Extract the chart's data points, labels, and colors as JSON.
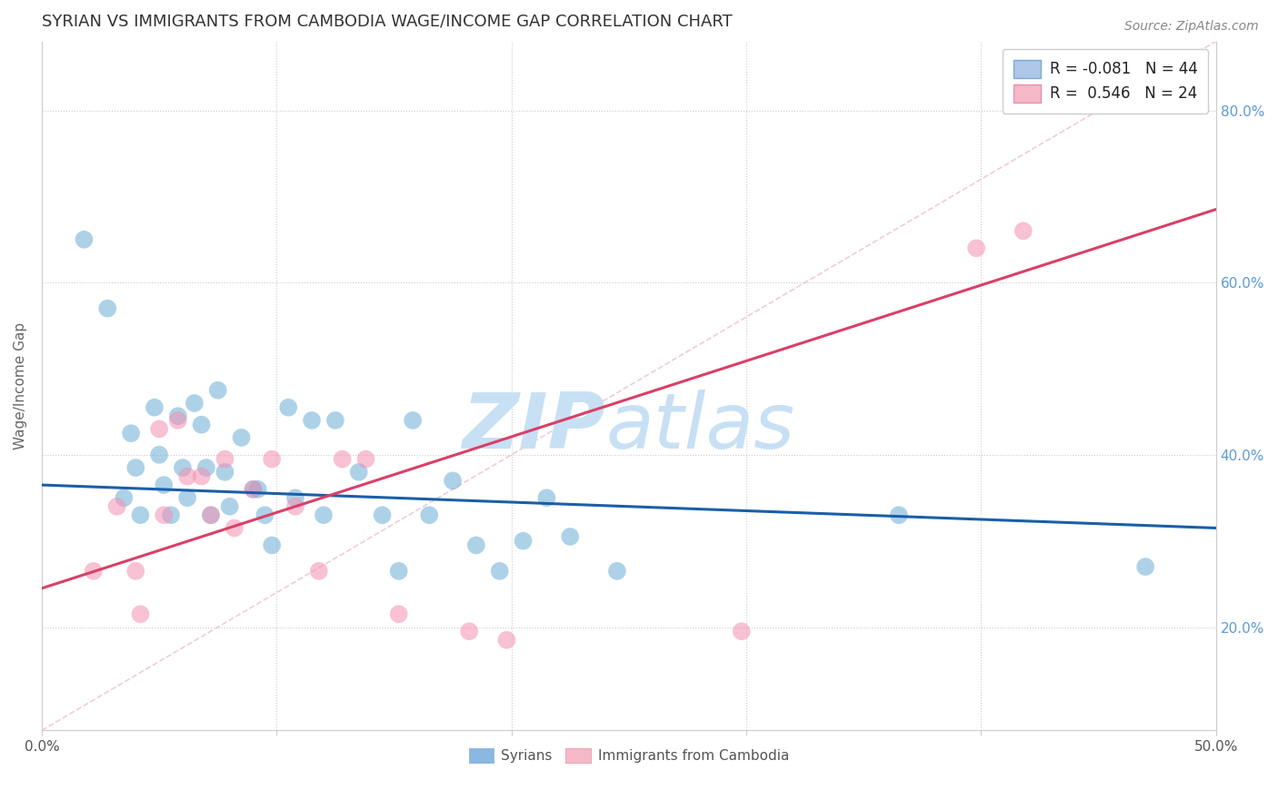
{
  "title": "SYRIAN VS IMMIGRANTS FROM CAMBODIA WAGE/INCOME GAP CORRELATION CHART",
  "source_text": "Source: ZipAtlas.com",
  "ylabel": "Wage/Income Gap",
  "xlim": [
    0.0,
    0.5
  ],
  "ylim": [
    0.08,
    0.88
  ],
  "xticks": [
    0.0,
    0.1,
    0.2,
    0.3,
    0.4,
    0.5
  ],
  "xtick_labels": [
    "0.0%",
    "",
    "",
    "",
    "",
    "50.0%"
  ],
  "yticks": [
    0.2,
    0.4,
    0.6,
    0.8
  ],
  "ytick_labels_right": [
    "20.0%",
    "40.0%",
    "60.0%",
    "80.0%"
  ],
  "legend_entries": [
    {
      "label": "R = -0.081   N = 44",
      "facecolor": "#aec6e8",
      "edgecolor": "#7aacd4"
    },
    {
      "label": "R =  0.546   N = 24",
      "facecolor": "#f4b8c8",
      "edgecolor": "#e88faa"
    }
  ],
  "legend_bottom": [
    "Syrians",
    "Immigrants from Cambodia"
  ],
  "legend_bottom_colors": [
    "#8ab8e0",
    "#f4b8c8"
  ],
  "blue_color": "#6baed6",
  "pink_color": "#f48fb1",
  "blue_line_color": "#1a5fa8",
  "pink_line_color": "#d94068",
  "watermark_zip": "ZIP",
  "watermark_atlas": "atlas",
  "watermark_color": "#c8e0f4",
  "blue_dots_x": [
    0.018,
    0.028,
    0.035,
    0.038,
    0.04,
    0.042,
    0.048,
    0.05,
    0.052,
    0.055,
    0.058,
    0.06,
    0.062,
    0.065,
    0.068,
    0.07,
    0.072,
    0.075,
    0.078,
    0.08,
    0.085,
    0.09,
    0.092,
    0.095,
    0.098,
    0.105,
    0.108,
    0.115,
    0.12,
    0.125,
    0.135,
    0.145,
    0.152,
    0.158,
    0.165,
    0.175,
    0.185,
    0.195,
    0.205,
    0.215,
    0.225,
    0.245,
    0.365,
    0.47
  ],
  "blue_dots_y": [
    0.65,
    0.57,
    0.35,
    0.425,
    0.385,
    0.33,
    0.455,
    0.4,
    0.365,
    0.33,
    0.445,
    0.385,
    0.35,
    0.46,
    0.435,
    0.385,
    0.33,
    0.475,
    0.38,
    0.34,
    0.42,
    0.36,
    0.36,
    0.33,
    0.295,
    0.455,
    0.35,
    0.44,
    0.33,
    0.44,
    0.38,
    0.33,
    0.265,
    0.44,
    0.33,
    0.37,
    0.295,
    0.265,
    0.3,
    0.35,
    0.305,
    0.265,
    0.33,
    0.27
  ],
  "pink_dots_x": [
    0.022,
    0.032,
    0.04,
    0.042,
    0.05,
    0.052,
    0.058,
    0.062,
    0.068,
    0.072,
    0.078,
    0.082,
    0.09,
    0.098,
    0.108,
    0.118,
    0.128,
    0.138,
    0.152,
    0.182,
    0.198,
    0.298,
    0.398,
    0.418
  ],
  "pink_dots_y": [
    0.265,
    0.34,
    0.265,
    0.215,
    0.43,
    0.33,
    0.44,
    0.375,
    0.375,
    0.33,
    0.395,
    0.315,
    0.36,
    0.395,
    0.34,
    0.265,
    0.395,
    0.395,
    0.215,
    0.195,
    0.185,
    0.195,
    0.64,
    0.66
  ],
  "blue_trend_x": [
    0.0,
    0.5
  ],
  "blue_trend_y": [
    0.365,
    0.315
  ],
  "pink_trend_x": [
    0.0,
    0.5
  ],
  "pink_trend_y": [
    0.245,
    0.685
  ],
  "ref_line_x": [
    0.0,
    0.5
  ],
  "ref_line_y": [
    0.08,
    0.88
  ]
}
